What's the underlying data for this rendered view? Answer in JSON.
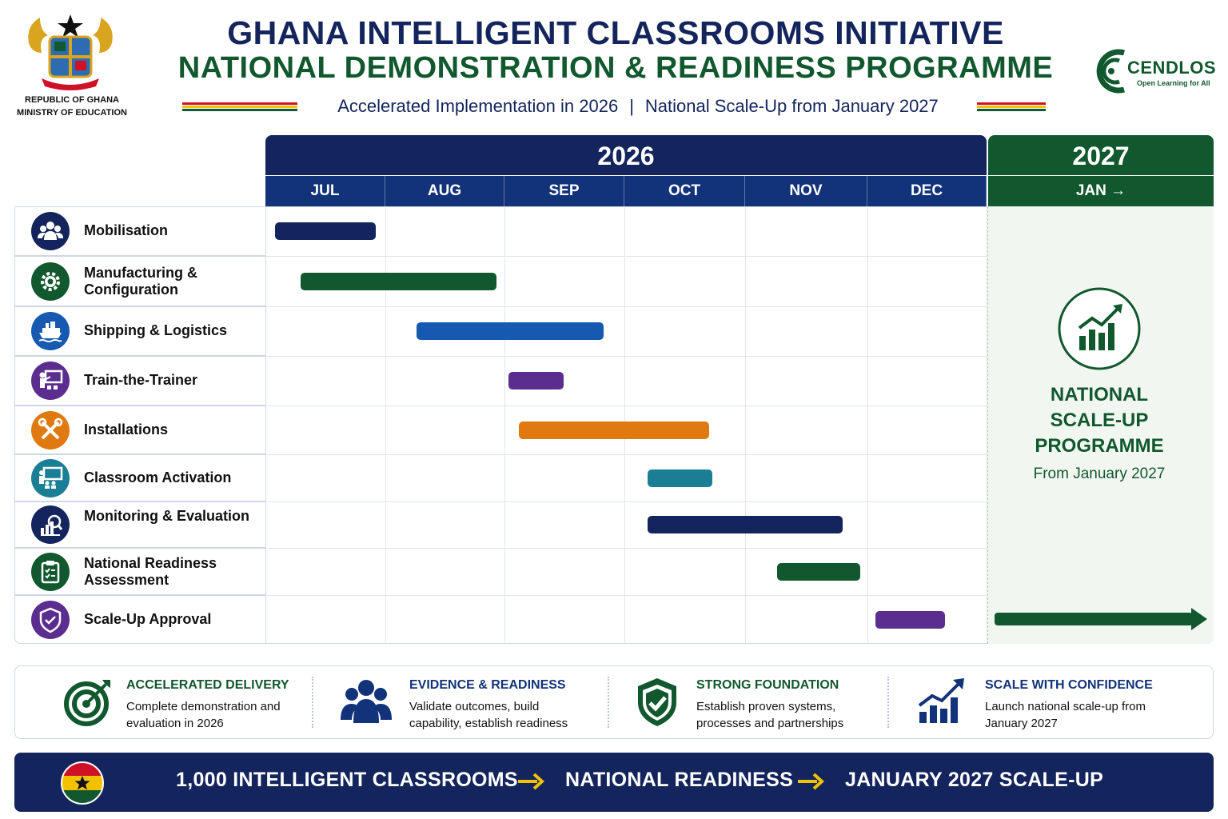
{
  "header": {
    "gov_line1": "REPUBLIC OF GHANA",
    "gov_line2": "MINISTRY OF EDUCATION",
    "title_line1": "GHANA INTELLIGENT CLASSROOMS INITIATIVE",
    "title_line2": "NATIONAL DEMONSTRATION & READINESS PROGRAMME",
    "subtitle_left": "Accelerated Implementation in 2026",
    "subtitle_sep": "|",
    "subtitle_right": "National Scale-Up from January 2027",
    "logo_name": "CENDLOS",
    "logo_tagline": "Open Learning for All"
  },
  "colors": {
    "navy": "#14245c",
    "green": "#11582e",
    "blue": "#1559b0",
    "purple": "#5b2d8e",
    "orange": "#e07a10",
    "teal": "#1a7f95",
    "ghana_red": "#ce1126",
    "ghana_gold": "#f2c200",
    "ghana_green": "#11582e"
  },
  "chart_data": {
    "type": "gantt",
    "years": [
      {
        "label": "2026",
        "months": [
          "JUL",
          "AUG",
          "SEP",
          "OCT",
          "NOV",
          "DEC"
        ]
      },
      {
        "label": "2027",
        "months": [
          "JAN →"
        ]
      }
    ],
    "tasks": [
      {
        "name": "Mobilisation",
        "icon": "people-group-icon",
        "start": 0.08,
        "end": 0.92,
        "color": "#14245c"
      },
      {
        "name": "Manufacturing & Configuration",
        "icon": "gear-icon",
        "start": 0.29,
        "end": 1.93,
        "color": "#11582e"
      },
      {
        "name": "Shipping & Logistics",
        "icon": "ship-icon",
        "start": 1.26,
        "end": 2.83,
        "color": "#1559b0"
      },
      {
        "name": "Train-the-Trainer",
        "icon": "trainer-icon",
        "start": 2.03,
        "end": 2.49,
        "color": "#5b2d8e"
      },
      {
        "name": "Installations",
        "icon": "tools-icon",
        "start": 2.12,
        "end": 3.7,
        "color": "#e07a10"
      },
      {
        "name": "Classroom Activation",
        "icon": "classroom-icon",
        "start": 3.19,
        "end": 3.73,
        "color": "#1a7f95"
      },
      {
        "name": "Monitoring & Evaluation",
        "icon": "chart-magnifier-icon",
        "start": 3.19,
        "end": 4.8,
        "color": "#14245c"
      },
      {
        "name": "National Readiness Assessment",
        "icon": "clipboard-icon",
        "start": 4.26,
        "end": 4.94,
        "color": "#11582e"
      },
      {
        "name": "Scale-Up Approval",
        "icon": "shield-check-icon",
        "start": 5.07,
        "end": 5.65,
        "color": "#5b2d8e"
      }
    ],
    "scale_up": {
      "title_lines": [
        "NATIONAL",
        "SCALE-UP",
        "PROGRAMME"
      ],
      "subtitle": "From January 2027",
      "icon": "growth-chart-icon",
      "arrow_color": "#11582e"
    }
  },
  "benefits": [
    {
      "heading": "ACCELERATED DELIVERY",
      "text": "Complete demonstration and evaluation in 2026",
      "icon": "target-icon",
      "color": "#11582e"
    },
    {
      "heading": "EVIDENCE & READINESS",
      "text": "Validate outcomes, build capability, establish readiness",
      "icon": "team-icon",
      "color": "#12327a"
    },
    {
      "heading": "STRONG FOUNDATION",
      "text": "Establish proven systems, processes and partnerships",
      "icon": "shield-check-icon",
      "color": "#11582e"
    },
    {
      "heading": "SCALE WITH CONFIDENCE",
      "text": "Launch national scale-up from January 2027",
      "icon": "growth-chart-icon",
      "color": "#12327a"
    }
  ],
  "footer": {
    "items": [
      "1,000 INTELLIGENT CLASSROOMS",
      "NATIONAL READINESS",
      "JANUARY 2027 SCALE-UP"
    ],
    "arrow_color": "#f2c200",
    "flag_icon": "ghana-flag-icon"
  }
}
